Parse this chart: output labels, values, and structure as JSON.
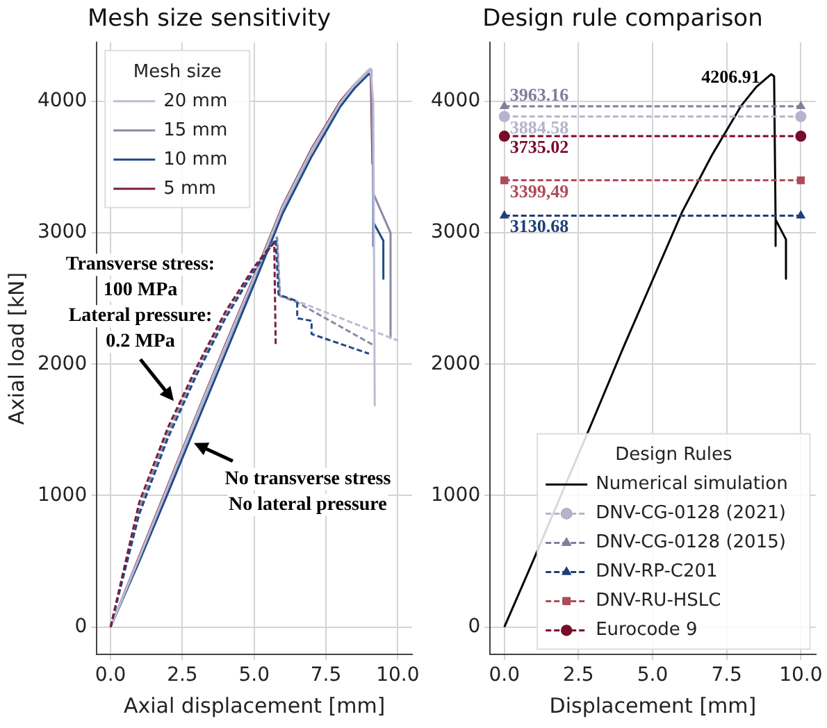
{
  "chart_data": [
    {
      "type": "line",
      "title": "Mesh size sensitivity",
      "xlabel": "Axial displacement [mm]",
      "ylabel": "Axial load [kN]",
      "legend_title": "Mesh size",
      "legend": "top left",
      "grid": true,
      "xlim": [
        -0.48,
        10.5
      ],
      "ylim": [
        -210,
        4450
      ],
      "xticks": [
        {
          "value": 0,
          "label": "0.0"
        },
        {
          "value": 2.5,
          "label": "2.5"
        },
        {
          "value": 5,
          "label": "5.0"
        },
        {
          "value": 7.5,
          "label": "7.5"
        },
        {
          "value": 10,
          "label": "10.0"
        }
      ],
      "yticks": [
        0,
        1000,
        2000,
        3000,
        4000
      ],
      "series": [
        {
          "name": "20 mm",
          "color": "#bcbcd4",
          "line_style": "solid",
          "x": [
            0,
            1,
            2,
            3,
            4,
            5,
            6,
            7,
            8,
            8.5,
            9,
            9.05,
            9.15,
            9.2
          ],
          "values": [
            0,
            530,
            1070,
            1610,
            2140,
            2660,
            3200,
            3630,
            3990,
            4130,
            4240,
            4250,
            4000,
            1680
          ]
        },
        {
          "name": "15 mm",
          "color": "#8a8aa6",
          "line_style": "solid",
          "x": [
            0,
            1,
            2,
            3,
            4,
            5,
            6,
            7,
            8,
            8.5,
            9,
            9.08,
            9.15,
            9.75,
            9.75
          ],
          "values": [
            0,
            525,
            1060,
            1600,
            2130,
            2650,
            3190,
            3620,
            3985,
            4125,
            4235,
            4240,
            3300,
            3000,
            2200
          ]
        },
        {
          "name": "10 mm",
          "color": "#1f4a8a",
          "line_style": "solid",
          "x": [
            0,
            1,
            2,
            3,
            4,
            5,
            6,
            7,
            8,
            8.5,
            9,
            9.08,
            9.15,
            9.15,
            9.15,
            9.5,
            9.5
          ],
          "values": [
            0,
            500,
            1020,
            1550,
            2080,
            2610,
            3150,
            3580,
            3960,
            4100,
            4210,
            4190,
            3520,
            2900,
            3080,
            2940,
            2650
          ]
        },
        {
          "name": "5 mm",
          "color": "#7a1f3d",
          "line_style": "solid",
          "x": [
            0,
            1,
            2,
            3,
            4,
            5,
            6,
            7,
            8,
            8.5,
            9,
            9.06,
            9.12
          ],
          "values": [
            0,
            540,
            1080,
            1620,
            2150,
            2670,
            3210,
            3640,
            4000,
            4130,
            4240,
            4240,
            3520
          ]
        },
        {
          "color": "#bcbcd4",
          "line_style": "dashed",
          "x": [
            0,
            1,
            2,
            3,
            4,
            5,
            5.5,
            5.8,
            5.9,
            6.5,
            10
          ],
          "values": [
            0,
            900,
            1480,
            1950,
            2370,
            2720,
            2880,
            2970,
            2520,
            2480,
            2180
          ]
        },
        {
          "color": "#8a8aa6",
          "line_style": "dashed",
          "x": [
            0,
            1,
            2,
            3,
            4,
            5,
            5.5,
            5.8,
            5.9,
            6.5,
            9.2
          ],
          "values": [
            0,
            900,
            1480,
            1950,
            2370,
            2720,
            2880,
            2960,
            2520,
            2470,
            2140
          ]
        },
        {
          "color": "#1f4a8a",
          "line_style": "dashed",
          "x": [
            0,
            1,
            2,
            3,
            4,
            5,
            5.5,
            5.75,
            5.85,
            6.5,
            6.5,
            7,
            7,
            9
          ],
          "values": [
            0,
            860,
            1440,
            1920,
            2350,
            2710,
            2870,
            2950,
            2530,
            2480,
            2350,
            2330,
            2230,
            2080
          ]
        },
        {
          "color": "#7a1f3d",
          "line_style": "dashed",
          "x": [
            0,
            1,
            2,
            3,
            4,
            5,
            5.5,
            5.7,
            5.75
          ],
          "values": [
            0,
            950,
            1520,
            1980,
            2400,
            2740,
            2880,
            2920,
            2150
          ]
        }
      ],
      "annotations": [
        {
          "text": "Transverse stress:\n100 MPa\nLateral pressure:\n0.2 MPa",
          "x": 2.2,
          "y": 1720
        },
        {
          "text": "No transverse stress\nNo lateral pressure",
          "x": 2.9,
          "y": 1400
        }
      ]
    },
    {
      "type": "line",
      "title": "Design rule comparison",
      "xlabel": "Displacement [mm]",
      "legend_title": "Design Rules",
      "legend": "bottom right",
      "grid": true,
      "xlim": [
        -0.48,
        10.5
      ],
      "ylim": [
        -210,
        4450
      ],
      "xticks": [
        {
          "value": 0,
          "label": "0.0"
        },
        {
          "value": 2.5,
          "label": "2.5"
        },
        {
          "value": 5,
          "label": "5.0"
        },
        {
          "value": 7.5,
          "label": "7.5"
        },
        {
          "value": 10,
          "label": "10.0"
        }
      ],
      "yticks": [
        0,
        1000,
        2000,
        3000,
        4000
      ],
      "series": [
        {
          "name": "Numerical simulation",
          "color": "#000000",
          "line_style": "solid",
          "x": [
            0,
            1,
            3,
            4,
            5,
            6,
            7,
            8,
            8.5,
            9,
            9.1,
            9.15,
            9.15,
            9.15,
            9.5,
            9.5
          ],
          "values": [
            0,
            520,
            1580,
            2120,
            2640,
            3160,
            3590,
            3970,
            4110,
            4206.91,
            4190,
            3100,
            2900,
            3100,
            2950,
            2650
          ],
          "value_labels": [
            null,
            null,
            null,
            null,
            null,
            null,
            null,
            null,
            null,
            "4206.91",
            null,
            null,
            null,
            null,
            null,
            null
          ]
        },
        {
          "name": "DNV-CG-0128 (2021)",
          "color": "#b4b4cc",
          "line_style": "dashed",
          "marker": "circle",
          "x": [
            0,
            10
          ],
          "values": [
            3884.58,
            3884.58
          ],
          "value_labels": [
            "3884.58",
            null
          ]
        },
        {
          "name": "DNV-CG-0128 (2015)",
          "color": "#7f7f9e",
          "line_style": "dashed",
          "marker": "triangle",
          "x": [
            0,
            10
          ],
          "values": [
            3963.16,
            3963.16
          ],
          "value_labels": [
            "3963.16",
            null
          ]
        },
        {
          "name": "DNV-RP-C201",
          "color": "#1f3f7a",
          "line_style": "dashed",
          "marker": "triangle",
          "x": [
            0,
            10
          ],
          "values": [
            3130.68,
            3130.68
          ],
          "value_labels": [
            "3130.68",
            null
          ]
        },
        {
          "name": "DNV-RU-HSLC",
          "color": "#b04a5a",
          "line_style": "dashed",
          "marker": "square",
          "x": [
            0,
            10
          ],
          "values": [
            3399.49,
            3399.49
          ],
          "value_labels": [
            "3399,49",
            null
          ]
        },
        {
          "name": "Eurocode 9",
          "color": "#7a0a2a",
          "line_style": "dashed",
          "marker": "circle",
          "x": [
            0,
            10
          ],
          "values": [
            3735.02,
            3735.02
          ],
          "value_labels": [
            "3735.02",
            null
          ]
        }
      ]
    }
  ]
}
